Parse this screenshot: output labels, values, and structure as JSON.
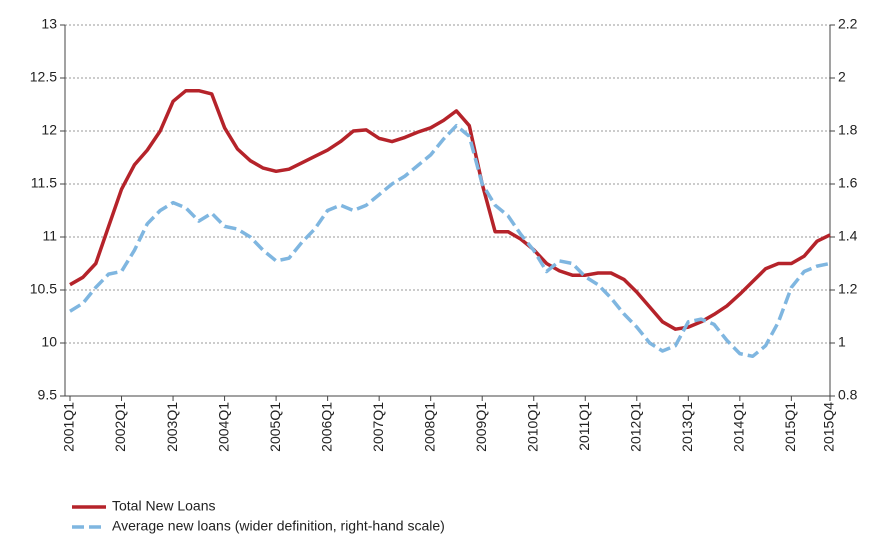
{
  "chart_data": {
    "type": "line",
    "categories": [
      "2001Q1",
      null,
      null,
      null,
      "2002Q1",
      null,
      null,
      null,
      "2003Q1",
      null,
      null,
      null,
      "2004Q1",
      null,
      null,
      null,
      "2005Q1",
      null,
      null,
      null,
      "2006Q1",
      null,
      null,
      null,
      "2007Q1",
      null,
      null,
      null,
      "2008Q1",
      null,
      null,
      null,
      "2009Q1",
      null,
      null,
      null,
      "2010Q1",
      null,
      null,
      null,
      "2011Q1",
      null,
      null,
      null,
      "2012Q1",
      null,
      null,
      null,
      "2013Q1",
      null,
      null,
      null,
      "2014Q1",
      null,
      null,
      null,
      "2015Q1",
      null,
      null,
      "2015Q4"
    ],
    "series": [
      {
        "name": "Total New Loans",
        "color": "#b5232a",
        "values": [
          10.55,
          10.62,
          10.75,
          11.1,
          11.45,
          11.68,
          11.82,
          12.0,
          12.28,
          12.38,
          12.38,
          12.35,
          12.03,
          11.83,
          11.72,
          11.65,
          11.62,
          11.64,
          11.7,
          11.76,
          11.82,
          11.9,
          12.0,
          12.01,
          11.93,
          11.9,
          11.94,
          11.99,
          12.03,
          12.1,
          12.19,
          12.05,
          11.5,
          11.05,
          11.05,
          10.98,
          10.88,
          10.75,
          10.68,
          10.64,
          10.64,
          10.66,
          10.66,
          10.6,
          10.48,
          10.34,
          10.2,
          10.13,
          10.15,
          10.2,
          10.27,
          10.35,
          10.46,
          10.58,
          10.7,
          10.75,
          10.75,
          10.82,
          10.96,
          11.02
        ]
      },
      {
        "name": "Average new loans (wider definition, right-hand scale)",
        "color": "#7fb6e0",
        "axis": "y2",
        "dashed": true,
        "values": [
          1.12,
          1.15,
          1.21,
          1.26,
          1.27,
          1.35,
          1.45,
          1.5,
          1.53,
          1.51,
          1.46,
          1.49,
          1.44,
          1.43,
          1.4,
          1.35,
          1.31,
          1.32,
          1.38,
          1.43,
          1.5,
          1.52,
          1.5,
          1.52,
          1.56,
          1.6,
          1.63,
          1.67,
          1.71,
          1.77,
          1.82,
          1.78,
          1.6,
          1.52,
          1.48,
          1.41,
          1.35,
          1.27,
          1.31,
          1.3,
          1.25,
          1.22,
          1.17,
          1.11,
          1.06,
          1.0,
          0.97,
          0.99,
          1.08,
          1.09,
          1.07,
          1.01,
          0.96,
          0.95,
          0.99,
          1.08,
          1.21,
          1.27,
          1.29,
          1.3
        ]
      }
    ],
    "ylim": [
      9.5,
      13
    ],
    "yticks": [
      9.5,
      10,
      10.5,
      11,
      11.5,
      12,
      12.5,
      13
    ],
    "y2lim": [
      0.8,
      2.2
    ],
    "y2ticks": [
      0.8,
      1,
      1.2,
      1.4,
      1.6,
      1.8,
      2,
      2.2
    ],
    "grid": true
  }
}
